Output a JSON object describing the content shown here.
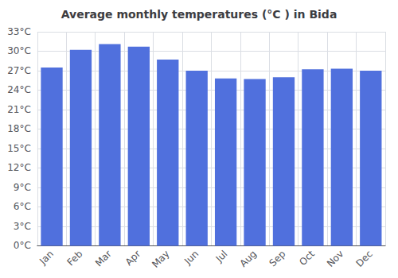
{
  "chart_data": {
    "type": "bar",
    "title": "Average monthly temperatures (°C ) in Bida",
    "categories": [
      "Jan",
      "Feb",
      "Mar",
      "Apr",
      "May",
      "Jun",
      "Jul",
      "Aug",
      "Sep",
      "Oct",
      "Nov",
      "Dec"
    ],
    "values": [
      27.5,
      30.2,
      31.1,
      30.7,
      28.7,
      27.0,
      25.8,
      25.7,
      26.0,
      27.2,
      27.3,
      27.0
    ],
    "ylim": [
      0,
      33
    ],
    "yticks": [
      {
        "value": 0,
        "label": "0°C"
      },
      {
        "value": 3,
        "label": "3°C"
      },
      {
        "value": 6,
        "label": "6°C"
      },
      {
        "value": 9,
        "label": "9°C"
      },
      {
        "value": 12,
        "label": "12°C"
      },
      {
        "value": 15,
        "label": "15°C"
      },
      {
        "value": 18,
        "label": "18°C"
      },
      {
        "value": 21,
        "label": "21°C"
      },
      {
        "value": 24,
        "label": "24°C"
      },
      {
        "value": 27,
        "label": "27°C"
      },
      {
        "value": 30,
        "label": "30°C"
      },
      {
        "value": 33,
        "label": "33°C"
      }
    ],
    "grid": true
  }
}
